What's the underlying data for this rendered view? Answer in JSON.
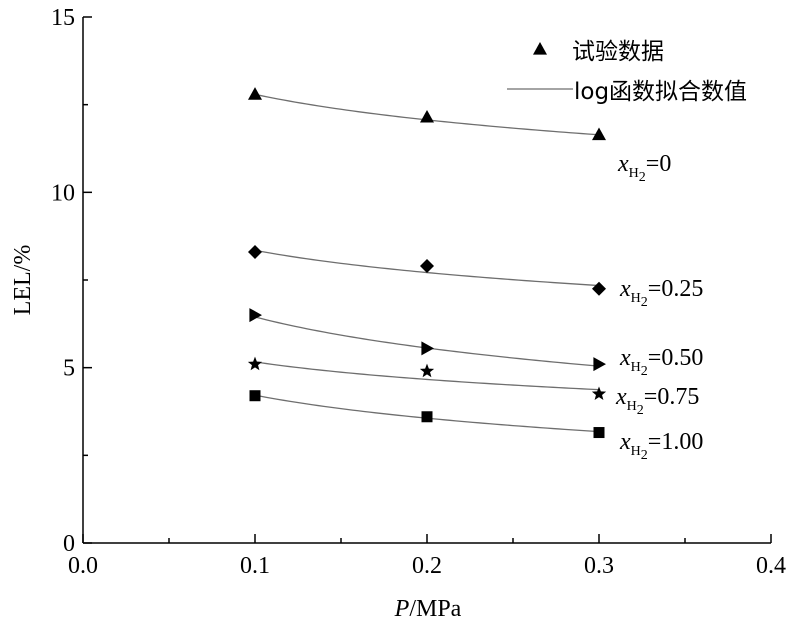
{
  "chart_data": {
    "type": "scatter",
    "xlabel_italic": "P",
    "xlabel_unit": "/MPa",
    "ylabel": "LEL/%",
    "xlim": [
      0.0,
      0.4
    ],
    "ylim": [
      0,
      15
    ],
    "xticks": [
      "0.0",
      "0.1",
      "0.2",
      "0.3",
      "0.4"
    ],
    "yticks": [
      "0",
      "5",
      "10",
      "15"
    ],
    "grid": false,
    "legend": {
      "position": "top-right",
      "items": [
        {
          "label": "试验数据",
          "kind": "marker",
          "marker": "triangle"
        },
        {
          "label": "log函数拟合数值",
          "kind": "line"
        }
      ]
    },
    "series": [
      {
        "label_var": "x",
        "label_sub": "H",
        "label_sub2": "2",
        "label_value": "=0",
        "marker": "triangle",
        "x": [
          0.1,
          0.2,
          0.3
        ],
        "y": [
          12.8,
          12.15,
          11.65
        ],
        "fit": [
          12.8,
          12.05,
          11.65
        ]
      },
      {
        "label_var": "x",
        "label_sub": "H",
        "label_sub2": "2",
        "label_value": "=0.25",
        "marker": "diamond",
        "x": [
          0.1,
          0.2,
          0.3
        ],
        "y": [
          8.3,
          7.9,
          7.25
        ],
        "fit": [
          8.35,
          7.7,
          7.35
        ]
      },
      {
        "label_var": "x",
        "label_sub": "H",
        "label_sub2": "2",
        "label_value": "=0.50",
        "marker": "right-triangle",
        "x": [
          0.1,
          0.2,
          0.3
        ],
        "y": [
          6.5,
          5.55,
          5.1
        ],
        "fit": [
          6.45,
          5.55,
          5.05
        ]
      },
      {
        "label_var": "x",
        "label_sub": "H",
        "label_sub2": "2",
        "label_value": "=0.75",
        "marker": "star",
        "x": [
          0.1,
          0.2,
          0.3
        ],
        "y": [
          5.1,
          4.9,
          4.25
        ],
        "fit": [
          5.15,
          4.7,
          4.35
        ]
      },
      {
        "label_var": "x",
        "label_sub": "H",
        "label_sub2": "2",
        "label_value": "=1.00",
        "marker": "square",
        "x": [
          0.1,
          0.2,
          0.3
        ],
        "y": [
          4.2,
          3.6,
          3.15
        ],
        "fit": [
          4.2,
          3.6,
          3.15
        ]
      }
    ]
  }
}
